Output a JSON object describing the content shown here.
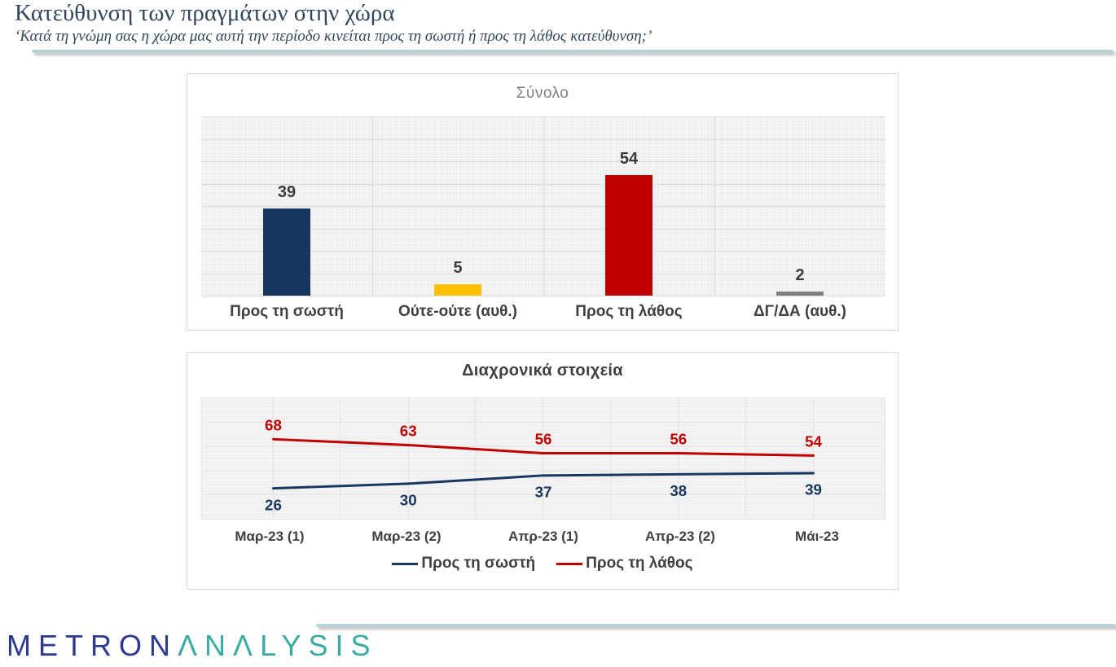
{
  "header": {
    "title": "Κατεύθυνση των πραγμάτων στην χώρα",
    "subtitle": "‘Κατά τη γνώμη σας η χώρα μας αυτή την περίοδο κινείται προς τη σωστή ή προς τη λάθος κατεύθυνση;’"
  },
  "footer": {
    "logo_part1": "METRON",
    "logo_part2": "ΛNΛLYSIS"
  },
  "colors": {
    "accent_rule": "#BAD0D9",
    "logo_navy": "#2B3A90",
    "logo_teal": "#3AABA3",
    "header_text": "#33475C",
    "chart_text": "#404040",
    "bar_chart_title_gray": "#7F7F7F"
  },
  "chart_data": [
    {
      "type": "bar",
      "title": "Σύνολο",
      "categories": [
        "Προς τη σωστή",
        "Ούτε-ούτε (αυθ.)",
        "Προς τη λάθος",
        "ΔΓ/ΔΑ (αυθ.)"
      ],
      "values": [
        39,
        5,
        54,
        2
      ],
      "bar_colors": [
        "#17375E",
        "#FFC000",
        "#C00000",
        "#808080"
      ],
      "ylim": [
        0,
        80
      ],
      "ytick_step": 10,
      "grid": true,
      "data_labels": true,
      "xlabel": "",
      "ylabel": ""
    },
    {
      "type": "line",
      "title": "Διαχρονικά στοιχεία",
      "categories": [
        "Μαρ-23 (1)",
        "Μαρ-23 (2)",
        "Απρ-23 (1)",
        "Απρ-23 (2)",
        "Μάι-23"
      ],
      "series": [
        {
          "name": "Προς τη σωστή",
          "color": "#17375E",
          "values": [
            26,
            30,
            37,
            38,
            39
          ],
          "label_position": "below"
        },
        {
          "name": "Προς τη λάθος",
          "color": "#C00000",
          "values": [
            68,
            63,
            56,
            56,
            54
          ],
          "label_position": "above"
        }
      ],
      "ylim": [
        0,
        103
      ],
      "grid": true,
      "legend_position": "bottom",
      "data_labels": true
    }
  ]
}
